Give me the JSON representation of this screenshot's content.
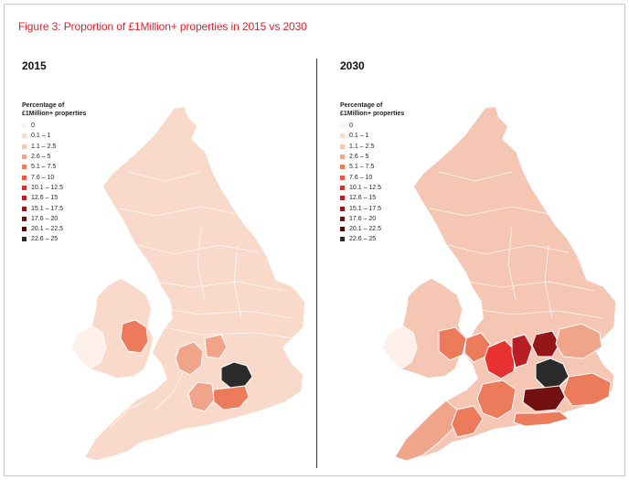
{
  "figure": {
    "title": "Figure 3: Proportion of £1Million+ properties in 2015 vs 2030"
  },
  "legend": {
    "title_line1": "Percentage of",
    "title_line2": "£1Million+ properties",
    "items": [
      {
        "label": "0",
        "color": "#fdf0ea"
      },
      {
        "label": "0.1 – 1",
        "color": "#f9d9ca"
      },
      {
        "label": "1.1 – 2.5",
        "color": "#f5c6b4"
      },
      {
        "label": "2.6 – 5",
        "color": "#f0a58a"
      },
      {
        "label": "5.1 – 7.5",
        "color": "#ec7b5c"
      },
      {
        "label": "7.6 – 10",
        "color": "#e85a45"
      },
      {
        "label": "10.1 – 12.5",
        "color": "#d9302c"
      },
      {
        "label": "12.6 – 15",
        "color": "#b81f24"
      },
      {
        "label": "15.1 – 17.5",
        "color": "#961519"
      },
      {
        "label": "17.6 – 20",
        "color": "#731012"
      },
      {
        "label": "20.1 – 22.5",
        "color": "#4f0b0c"
      },
      {
        "label": "22.6 – 25",
        "color": "#2a2a2a"
      }
    ]
  },
  "panels": [
    {
      "year": "2015",
      "base_color": "#f9d9ca",
      "regions": [
        {
          "name": "wales-west",
          "color": "#fdf0ea"
        },
        {
          "name": "cotswolds",
          "color": "#ec7b5c"
        },
        {
          "name": "thames-valley",
          "color": "#f0a58a"
        },
        {
          "name": "london",
          "color": "#2a2a2a"
        },
        {
          "name": "surrey",
          "color": "#ec7b5c"
        },
        {
          "name": "west-sussex",
          "color": "#f0a58a"
        },
        {
          "name": "hertfordshire",
          "color": "#f0a58a"
        },
        {
          "name": "kent",
          "color": "#f9d9ca"
        }
      ]
    },
    {
      "year": "2030",
      "base_color": "#f5c6b4",
      "regions": [
        {
          "name": "wales-west",
          "color": "#fdf0ea"
        },
        {
          "name": "devon-cornwall",
          "color": "#f0a58a"
        },
        {
          "name": "cotswolds",
          "color": "#ec7b5c"
        },
        {
          "name": "thames-valley",
          "color": "#e83232"
        },
        {
          "name": "chilterns",
          "color": "#b81f24"
        },
        {
          "name": "hertfordshire",
          "color": "#961519"
        },
        {
          "name": "london",
          "color": "#2a2a2a"
        },
        {
          "name": "surrey",
          "color": "#731012"
        },
        {
          "name": "kent",
          "color": "#ec7b5c"
        },
        {
          "name": "hampshire",
          "color": "#ec7b5c"
        },
        {
          "name": "sussex",
          "color": "#ec7b5c"
        },
        {
          "name": "essex",
          "color": "#f0a58a"
        },
        {
          "name": "oxford-north",
          "color": "#ec7b5c"
        },
        {
          "name": "dorset",
          "color": "#ec7b5c"
        }
      ]
    }
  ]
}
